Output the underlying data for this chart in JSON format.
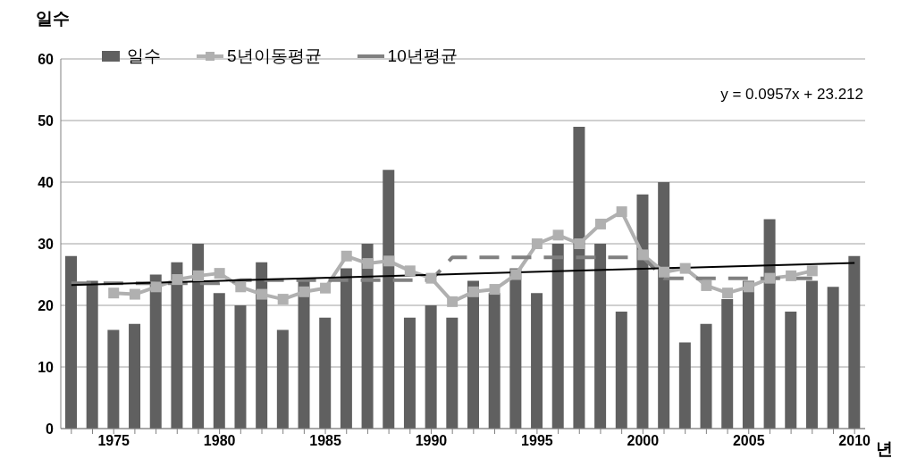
{
  "chart_data": {
    "type": "bar",
    "ylabel": "일수",
    "xlabel": "년",
    "categories": [
      null,
      null,
      "1975",
      null,
      null,
      null,
      null,
      "1980",
      null,
      null,
      null,
      null,
      "1985",
      null,
      null,
      null,
      null,
      "1990",
      null,
      null,
      null,
      null,
      "1995",
      null,
      null,
      null,
      null,
      "2000",
      null,
      null,
      null,
      null,
      "2005",
      null,
      null,
      null,
      null,
      "2010"
    ],
    "series": [
      {
        "name": "일수",
        "color": "#606060",
        "values": [
          28,
          24,
          16,
          17,
          25,
          27,
          30,
          22,
          20,
          27,
          16,
          24,
          18,
          26,
          30,
          42,
          18,
          20,
          18,
          24,
          22,
          26,
          22,
          30,
          49,
          30,
          19,
          38,
          40,
          14,
          17,
          21,
          24,
          34,
          19,
          24,
          23,
          28
        ]
      },
      {
        "name": "5년이동평균",
        "type": "line",
        "color": "#b0b0b0",
        "marker": "square",
        "values": [
          null,
          null,
          22.0,
          21.8,
          23.0,
          24.2,
          24.8,
          25.2,
          23.0,
          21.8,
          21.0,
          22.2,
          22.8,
          28.0,
          26.8,
          27.2,
          25.6,
          24.4,
          20.6,
          22.2,
          22.6,
          25.0,
          30.0,
          31.4,
          30.0,
          33.2,
          35.2,
          28.2,
          25.4,
          26.0,
          23.2,
          22.0,
          23.0,
          24.4,
          24.8,
          25.6,
          null,
          null
        ]
      },
      {
        "name": "10년평균",
        "type": "line",
        "color": "#808080",
        "line_style": "dashed",
        "values": [
          23.6,
          23.6,
          23.6,
          23.6,
          23.6,
          23.6,
          23.6,
          23.6,
          24.1,
          24.1,
          24.1,
          24.1,
          24.1,
          24.1,
          24.1,
          24.1,
          24.1,
          24.1,
          27.8,
          27.8,
          27.8,
          27.8,
          27.8,
          27.8,
          27.8,
          27.8,
          27.8,
          27.8,
          24.4,
          24.4,
          24.4,
          24.4,
          24.4,
          24.4,
          24.4,
          24.4,
          null,
          null
        ]
      },
      {
        "type": "line",
        "color": "#000000",
        "values": [
          23.3,
          null,
          null,
          null,
          null,
          null,
          null,
          null,
          null,
          null,
          null,
          null,
          null,
          null,
          null,
          null,
          null,
          null,
          null,
          null,
          null,
          null,
          null,
          null,
          null,
          null,
          null,
          null,
          null,
          null,
          null,
          null,
          null,
          null,
          null,
          null,
          null,
          26.9
        ]
      }
    ],
    "annotations": [
      "y = 0.0957x + 23.212"
    ],
    "ylim": [
      0,
      60
    ],
    "yticks": [
      0,
      10,
      20,
      30,
      40,
      50,
      60
    ],
    "grid": "y",
    "legend": "top left"
  }
}
